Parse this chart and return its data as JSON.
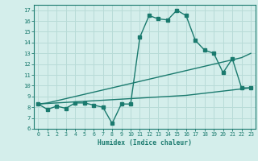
{
  "line1_x": [
    0,
    1,
    2,
    3,
    4,
    5,
    6,
    7,
    8,
    9,
    10,
    11,
    12,
    13,
    14,
    15,
    16,
    17,
    18,
    19,
    20,
    21,
    22,
    23
  ],
  "line1_y": [
    8.3,
    7.8,
    8.1,
    7.9,
    8.4,
    8.4,
    8.2,
    8.0,
    6.5,
    8.3,
    8.3,
    14.5,
    16.5,
    16.2,
    16.1,
    17.0,
    16.5,
    14.2,
    13.3,
    13.0,
    11.2,
    12.5,
    9.8,
    9.8
  ],
  "line2_x": [
    0,
    1,
    2,
    3,
    4,
    5,
    6,
    7,
    8,
    9,
    10,
    11,
    12,
    13,
    14,
    15,
    16,
    17,
    18,
    19,
    20,
    21,
    22,
    23
  ],
  "line2_y": [
    8.3,
    8.4,
    8.6,
    8.8,
    9.0,
    9.2,
    9.4,
    9.6,
    9.8,
    10.0,
    10.2,
    10.4,
    10.6,
    10.8,
    11.0,
    11.2,
    11.4,
    11.6,
    11.8,
    12.0,
    12.2,
    12.4,
    12.6,
    13.0
  ],
  "line3_x": [
    0,
    1,
    2,
    3,
    4,
    5,
    6,
    7,
    8,
    9,
    10,
    11,
    12,
    13,
    14,
    15,
    16,
    17,
    18,
    19,
    20,
    21,
    22,
    23
  ],
  "line3_y": [
    8.3,
    8.35,
    8.4,
    8.45,
    8.5,
    8.55,
    8.6,
    8.65,
    8.7,
    8.75,
    8.8,
    8.85,
    8.9,
    8.95,
    9.0,
    9.05,
    9.1,
    9.2,
    9.3,
    9.4,
    9.5,
    9.6,
    9.7,
    9.8
  ],
  "color": "#1a7a6e",
  "bg_color": "#d4eeeb",
  "grid_color": "#b8dbd7",
  "xlabel": "Humidex (Indice chaleur)",
  "xlim": [
    -0.5,
    23.5
  ],
  "ylim": [
    6,
    17.5
  ],
  "yticks": [
    6,
    7,
    8,
    9,
    10,
    11,
    12,
    13,
    14,
    15,
    16,
    17
  ],
  "xticks": [
    0,
    1,
    2,
    3,
    4,
    5,
    6,
    7,
    8,
    9,
    10,
    11,
    12,
    13,
    14,
    15,
    16,
    17,
    18,
    19,
    20,
    21,
    22,
    23
  ]
}
